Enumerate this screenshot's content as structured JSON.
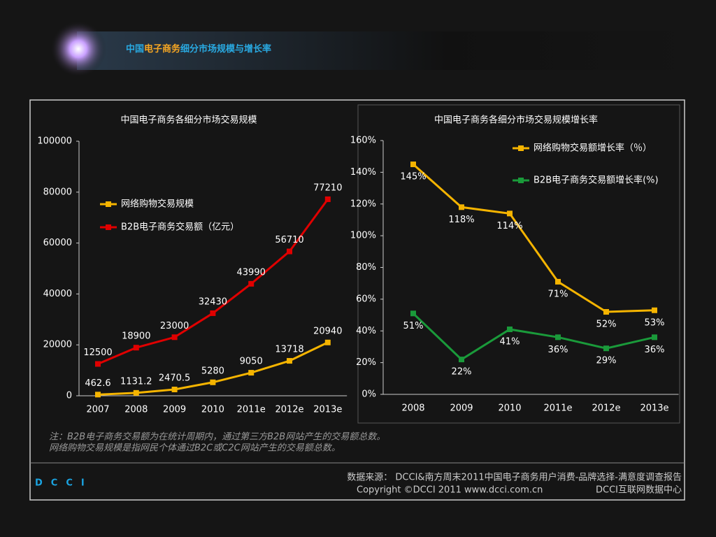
{
  "header": {
    "title": [
      "中国",
      "电子商务",
      "细分市场规模与增长率"
    ]
  },
  "chart_data": [
    {
      "type": "line",
      "title": "中国电子商务各细分市场交易规模",
      "categories": [
        "2007",
        "2008",
        "2009",
        "2010",
        "2011e",
        "2012e",
        "2013e"
      ],
      "series": [
        {
          "name": "网络购物交易规模",
          "color": "#f5b400",
          "values": [
            462.6,
            1131.2,
            2470.5,
            5280,
            9050,
            13718,
            20940
          ]
        },
        {
          "name": "B2B电子商务交易额（亿元）",
          "color": "#e00000",
          "values": [
            12500,
            18900,
            23000,
            32430,
            43990,
            56710,
            77210
          ]
        }
      ],
      "ylim": [
        0,
        100000
      ],
      "yticks": [
        0,
        20000,
        40000,
        60000,
        80000,
        100000
      ]
    },
    {
      "type": "line",
      "title": "中国电子商务各细分市场交易规模增长率",
      "categories": [
        "2008",
        "2009",
        "2010",
        "2011e",
        "2012e",
        "2013e"
      ],
      "series": [
        {
          "name": "网络购物交易额增长率（％）",
          "color": "#f5b400",
          "values": [
            145,
            118,
            114,
            71,
            52,
            53
          ],
          "value_labels": [
            "145%",
            "118%",
            "114%",
            "71%",
            "52%",
            "53%"
          ]
        },
        {
          "name": "B2B电子商务交易额增长率(%)",
          "color": "#1a9a3a",
          "values": [
            51,
            22,
            41,
            36,
            29,
            36
          ],
          "value_labels": [
            "51%",
            "22%",
            "41%",
            "36%",
            "29%",
            "36%"
          ]
        }
      ],
      "ylim": [
        0,
        160
      ],
      "yticks": [
        {
          "value": 0,
          "label": "0%"
        },
        {
          "value": 20,
          "label": "20%"
        },
        {
          "value": 40,
          "label": "40%"
        },
        {
          "value": 60,
          "label": "60%"
        },
        {
          "value": 80,
          "label": "80%"
        },
        {
          "value": 100,
          "label": "100%"
        },
        {
          "value": 120,
          "label": "120%"
        },
        {
          "value": 140,
          "label": "140%"
        },
        {
          "value": 160,
          "label": "160%"
        }
      ]
    }
  ],
  "note": [
    "注：B2B电子商务交易额为在统计周期内，通过第三方B2B网站产生的交易额总数。",
    "网络购物交易规模是指网民个体通过B2C或C2C网站产生的交易额总数。"
  ],
  "footer": {
    "logo": "DCCI",
    "source": "数据来源： DCCI&南方周末2011中国电子商务用户消费-品牌选择-满意度调查报告",
    "copyright": "Copyright ©DCCI 2011 www.dcci.com.cn",
    "org": "DCCI互联网数据中心"
  }
}
